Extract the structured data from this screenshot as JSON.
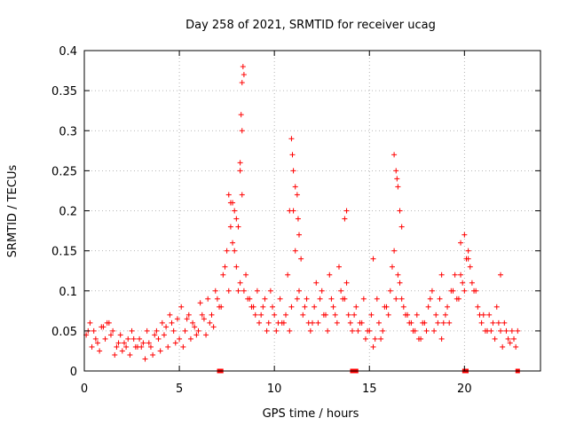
{
  "chart_data": {
    "type": "scatter",
    "title": "Day 258 of 2021, SRMTID for receiver ucag",
    "xlabel": "GPS time / hours",
    "ylabel": "SRMTID / TECUs",
    "xlim": [
      0,
      24
    ],
    "ylim": [
      0,
      0.4
    ],
    "x_ticks": [
      0,
      5,
      10,
      15,
      20
    ],
    "x_tick_labels": [
      "0",
      "5",
      "10",
      "15",
      "20"
    ],
    "y_ticks": [
      0,
      0.05,
      0.1,
      0.15,
      0.2,
      0.25,
      0.3,
      0.35,
      0.4
    ],
    "y_tick_labels": [
      "0",
      "0.05",
      "0.1",
      "0.15",
      "0.2",
      "0.25",
      "0.3",
      "0.35",
      "0.4"
    ],
    "grid": true,
    "marker": "plus",
    "color": "#ff0000",
    "baseline_points_x": [
      7.1,
      7.2,
      14.1,
      14.3,
      20.0,
      20.1,
      22.8
    ],
    "series": [
      {
        "name": "SRMTID",
        "x": [
          0.1,
          0.3,
          0.5,
          0.7,
          0.9,
          1.1,
          1.3,
          1.5,
          1.7,
          1.9,
          2.1,
          2.3,
          2.5,
          2.7,
          2.9,
          3.1,
          3.3,
          3.5,
          3.7,
          3.9,
          4.1,
          4.3,
          4.5,
          4.7,
          4.9,
          5.1,
          5.3,
          5.5,
          5.7,
          5.9,
          6.1,
          6.3,
          6.5,
          6.7,
          6.9,
          7.1,
          7.3,
          7.5,
          7.7,
          7.9,
          8.1,
          8.3,
          8.5,
          8.7,
          8.9,
          9.1,
          9.3,
          9.5,
          9.7,
          9.9,
          10.1,
          10.3,
          10.5,
          10.7,
          10.9,
          11.1,
          11.3,
          11.5,
          11.7,
          11.9,
          12.1,
          12.3,
          12.5,
          12.7,
          12.9,
          13.1,
          13.3,
          13.5,
          13.7,
          13.9,
          14.1,
          14.3,
          14.5,
          14.7,
          14.9,
          15.1,
          15.3,
          15.5,
          15.7,
          15.9,
          16.1,
          16.3,
          16.5,
          16.7,
          16.9,
          17.1,
          17.3,
          17.5,
          17.7,
          17.9,
          18.1,
          18.3,
          18.5,
          18.7,
          18.9,
          19.1,
          19.3,
          19.5,
          19.7,
          19.9,
          20.1,
          20.3,
          20.5,
          20.7,
          20.9,
          21.1,
          21.3,
          21.5,
          21.7,
          21.9,
          22.1,
          22.3,
          22.5,
          22.7,
          22.8,
          0.2,
          0.6,
          1.0,
          1.4,
          1.8,
          2.2,
          2.6,
          3.0,
          3.4,
          3.8,
          4.2,
          4.6,
          5.0,
          5.4,
          5.8,
          6.2,
          6.6,
          7.0,
          7.4,
          7.8,
          8.2,
          8.6,
          9.0,
          9.4,
          9.8,
          10.2,
          10.6,
          11.0,
          11.4,
          11.8,
          12.2,
          12.6,
          13.0,
          13.4,
          13.8,
          14.2,
          14.6,
          15.0,
          15.4,
          15.8,
          16.2,
          16.6,
          17.0,
          17.4,
          17.8,
          18.2,
          18.6,
          19.0,
          19.4,
          19.8,
          20.2,
          20.6,
          21.0,
          21.4,
          21.8,
          22.2,
          22.6,
          0.4,
          0.8,
          1.2,
          1.6,
          2.0,
          2.4,
          2.8,
          3.2,
          3.6,
          4.0,
          4.4,
          4.8,
          5.2,
          5.6,
          6.0,
          6.4,
          6.8,
          7.2,
          7.6,
          8.0,
          8.4,
          8.8,
          9.2,
          9.6,
          10.0,
          10.4,
          10.8,
          11.2,
          11.6,
          12.0,
          12.4,
          12.8,
          13.2,
          13.6,
          14.0,
          14.4,
          14.8,
          15.2,
          15.6,
          16.0,
          16.4,
          16.8,
          17.2,
          17.6,
          18.0,
          18.4,
          18.8,
          19.2,
          19.6,
          20.0,
          20.4,
          20.8,
          21.2,
          21.6,
          22.0,
          22.4,
          7.6,
          7.8,
          8.0,
          8.2,
          8.25,
          8.3,
          8.35,
          8.4,
          8.3,
          8.2,
          10.8,
          10.9,
          11.0,
          11.1,
          11.2,
          11.3,
          16.3,
          16.4,
          16.5,
          16.6,
          16.7,
          13.7,
          13.8,
          15.2,
          19.8,
          20.0,
          20.2,
          7.7,
          7.9,
          8.1,
          10.95,
          11.25,
          16.45,
          18.8,
          21.9
        ],
        "y": [
          0.045,
          0.06,
          0.05,
          0.035,
          0.055,
          0.04,
          0.06,
          0.05,
          0.03,
          0.045,
          0.035,
          0.04,
          0.05,
          0.03,
          0.04,
          0.035,
          0.05,
          0.03,
          0.045,
          0.04,
          0.06,
          0.055,
          0.07,
          0.05,
          0.065,
          0.08,
          0.05,
          0.07,
          0.06,
          0.045,
          0.085,
          0.065,
          0.09,
          0.07,
          0.1,
          0.08,
          0.12,
          0.15,
          0.18,
          0.2,
          0.1,
          0.22,
          0.12,
          0.09,
          0.08,
          0.1,
          0.07,
          0.09,
          0.06,
          0.08,
          0.05,
          0.09,
          0.06,
          0.12,
          0.08,
          0.15,
          0.1,
          0.07,
          0.09,
          0.05,
          0.08,
          0.06,
          0.1,
          0.07,
          0.12,
          0.08,
          0.06,
          0.1,
          0.09,
          0.07,
          0.05,
          0.08,
          0.06,
          0.09,
          0.05,
          0.07,
          0.04,
          0.06,
          0.05,
          0.08,
          0.1,
          0.15,
          0.12,
          0.09,
          0.07,
          0.06,
          0.05,
          0.07,
          0.04,
          0.06,
          0.08,
          0.1,
          0.07,
          0.09,
          0.06,
          0.08,
          0.1,
          0.12,
          0.09,
          0.11,
          0.14,
          0.13,
          0.1,
          0.08,
          0.06,
          0.05,
          0.07,
          0.06,
          0.08,
          0.05,
          0.06,
          0.04,
          0.05,
          0.03,
          0.05,
          0.05,
          0.04,
          0.055,
          0.045,
          0.035,
          0.03,
          0.04,
          0.03,
          0.035,
          0.05,
          0.045,
          0.06,
          0.04,
          0.065,
          0.055,
          0.07,
          0.06,
          0.09,
          0.13,
          0.16,
          0.11,
          0.09,
          0.07,
          0.08,
          0.1,
          0.06,
          0.07,
          0.2,
          0.14,
          0.06,
          0.11,
          0.07,
          0.09,
          0.13,
          0.11,
          0.07,
          0.06,
          0.05,
          0.09,
          0.08,
          0.13,
          0.11,
          0.07,
          0.05,
          0.06,
          0.09,
          0.06,
          0.07,
          0.1,
          0.12,
          0.15,
          0.1,
          0.07,
          0.05,
          0.06,
          0.05,
          0.04,
          0.03,
          0.025,
          0.06,
          0.02,
          0.025,
          0.02,
          0.03,
          0.015,
          0.02,
          0.025,
          0.03,
          0.035,
          0.03,
          0.04,
          0.05,
          0.045,
          0.055,
          0.08,
          0.1,
          0.13,
          0.1,
          0.08,
          0.06,
          0.05,
          0.07,
          0.06,
          0.05,
          0.09,
          0.08,
          0.06,
          0.09,
          0.05,
          0.07,
          0.09,
          0.06,
          0.05,
          0.04,
          0.03,
          0.04,
          0.07,
          0.09,
          0.08,
          0.06,
          0.04,
          0.05,
          0.05,
          0.04,
          0.06,
          0.09,
          0.1,
          0.11,
          0.07,
          0.05,
          0.04,
          0.03,
          0.035,
          0.22,
          0.21,
          0.19,
          0.25,
          0.32,
          0.36,
          0.38,
          0.37,
          0.3,
          0.26,
          0.2,
          0.29,
          0.25,
          0.23,
          0.22,
          0.17,
          0.27,
          0.25,
          0.23,
          0.2,
          0.18,
          0.19,
          0.2,
          0.14,
          0.16,
          0.17,
          0.14,
          0.21,
          0.15,
          0.18,
          0.27,
          0.19,
          0.24,
          0.12,
          0.12
        ]
      }
    ]
  }
}
